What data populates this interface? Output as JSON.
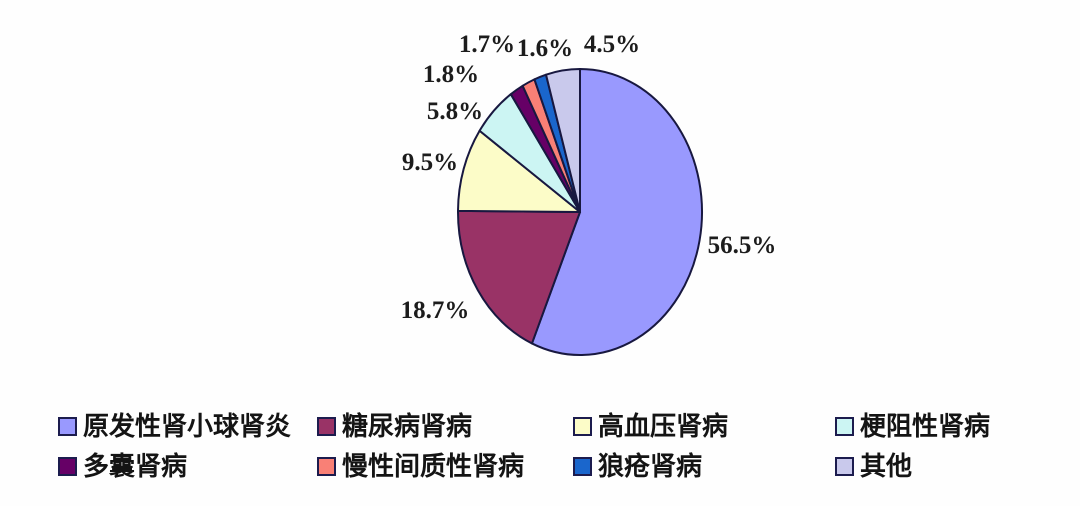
{
  "chart_data": {
    "type": "pie",
    "title": "",
    "start_angle_deg": 0,
    "direction": "clockwise",
    "legend_position": "bottom",
    "outline_color": "#181840",
    "slices": [
      {
        "name": "原发性肾小球肾炎",
        "value": 56.5,
        "label": "56.5%",
        "color": "#9999FE"
      },
      {
        "name": "糖尿病肾病",
        "value": 18.7,
        "label": "18.7%",
        "color": "#993366"
      },
      {
        "name": "高血压肾病",
        "value": 9.5,
        "label": "9.5%",
        "color": "#FCFCC8"
      },
      {
        "name": "梗阻性肾病",
        "value": 5.8,
        "label": "5.8%",
        "color": "#CCF5F3"
      },
      {
        "name": "多囊肾病",
        "value": 1.8,
        "label": "1.8%",
        "color": "#660066"
      },
      {
        "name": "慢性间质性肾病",
        "value": 1.7,
        "label": "1.7%",
        "color": "#F98076"
      },
      {
        "name": "狼疮肾病",
        "value": 1.6,
        "label": "1.6%",
        "color": "#1A66CC"
      },
      {
        "name": "其他",
        "value": 4.5,
        "label": "4.5%",
        "color": "#C9C9EC"
      }
    ]
  }
}
